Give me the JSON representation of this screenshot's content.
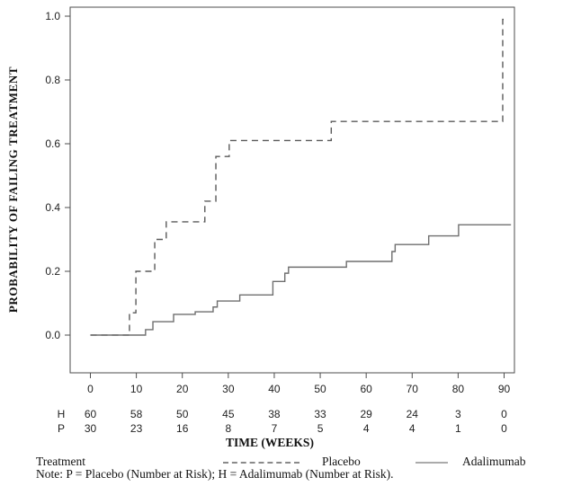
{
  "chart_data": {
    "type": "line",
    "subtype": "kaplan-meier-step",
    "xlabel": "TIME (WEEKS)",
    "ylabel": "PROBABILITY OF FAILING TREATMENT",
    "xlim": [
      -4.4,
      92.3
    ],
    "ylim": [
      -0.12,
      1.03
    ],
    "x_ticks": [
      0,
      10,
      20,
      30,
      40,
      50,
      60,
      70,
      80,
      90
    ],
    "y_ticks": [
      0.0,
      0.2,
      0.4,
      0.6,
      0.8,
      1.0
    ],
    "grid": false,
    "legend_position": "bottom",
    "series": [
      {
        "name": "Placebo",
        "line_style": "dashed",
        "color": "#5a5a5a",
        "points": [
          [
            0,
            0
          ],
          [
            8.5,
            0.07
          ],
          [
            9.9,
            0.2
          ],
          [
            14.0,
            0.3
          ],
          [
            16.5,
            0.355
          ],
          [
            24.9,
            0.42
          ],
          [
            27.3,
            0.56
          ],
          [
            30.2,
            0.61
          ],
          [
            52.4,
            0.67
          ],
          [
            89.7,
            0.99
          ]
        ],
        "end_week": 89.9
      },
      {
        "name": "Adalimumab",
        "line_style": "solid",
        "color": "#6f6f6f",
        "points": [
          [
            0,
            0
          ],
          [
            12.0,
            0.017
          ],
          [
            13.6,
            0.042
          ],
          [
            18.1,
            0.065
          ],
          [
            22.8,
            0.073
          ],
          [
            26.7,
            0.088
          ],
          [
            27.6,
            0.107
          ],
          [
            32.5,
            0.126
          ],
          [
            39.7,
            0.168
          ],
          [
            42.3,
            0.194
          ],
          [
            43.1,
            0.213
          ],
          [
            55.7,
            0.231
          ],
          [
            65.6,
            0.262
          ],
          [
            66.3,
            0.284
          ],
          [
            73.6,
            0.311
          ],
          [
            80.1,
            0.346
          ]
        ],
        "end_week": 91.5
      }
    ]
  },
  "risk_table": {
    "weeks": [
      0,
      10,
      20,
      30,
      40,
      50,
      60,
      70,
      80,
      90
    ],
    "rows": [
      {
        "label": "H",
        "values": [
          "60",
          "58",
          "50",
          "45",
          "38",
          "33",
          "29",
          "24",
          "3",
          "0"
        ]
      },
      {
        "label": "P",
        "values": [
          "30",
          "23",
          "16",
          "8",
          "7",
          "5",
          "4",
          "4",
          "1",
          "0"
        ]
      }
    ]
  },
  "legend": {
    "title": "Treatment",
    "items": [
      {
        "label": "Placebo",
        "style": "dashed"
      },
      {
        "label": "Adalimumab",
        "style": "solid"
      }
    ]
  },
  "note": "Note: P = Placebo (Number at Risk); H = Adalimumab (Number at Risk).",
  "colors": {
    "axis": "#4d4d4d",
    "text": "#1f1f1f",
    "placebo_line": "#5a5a5a",
    "adalimumab_line": "#6f6f6f",
    "legend_dash_sample": "#8a8a8a",
    "legend_solid_sample": "#ababab"
  }
}
